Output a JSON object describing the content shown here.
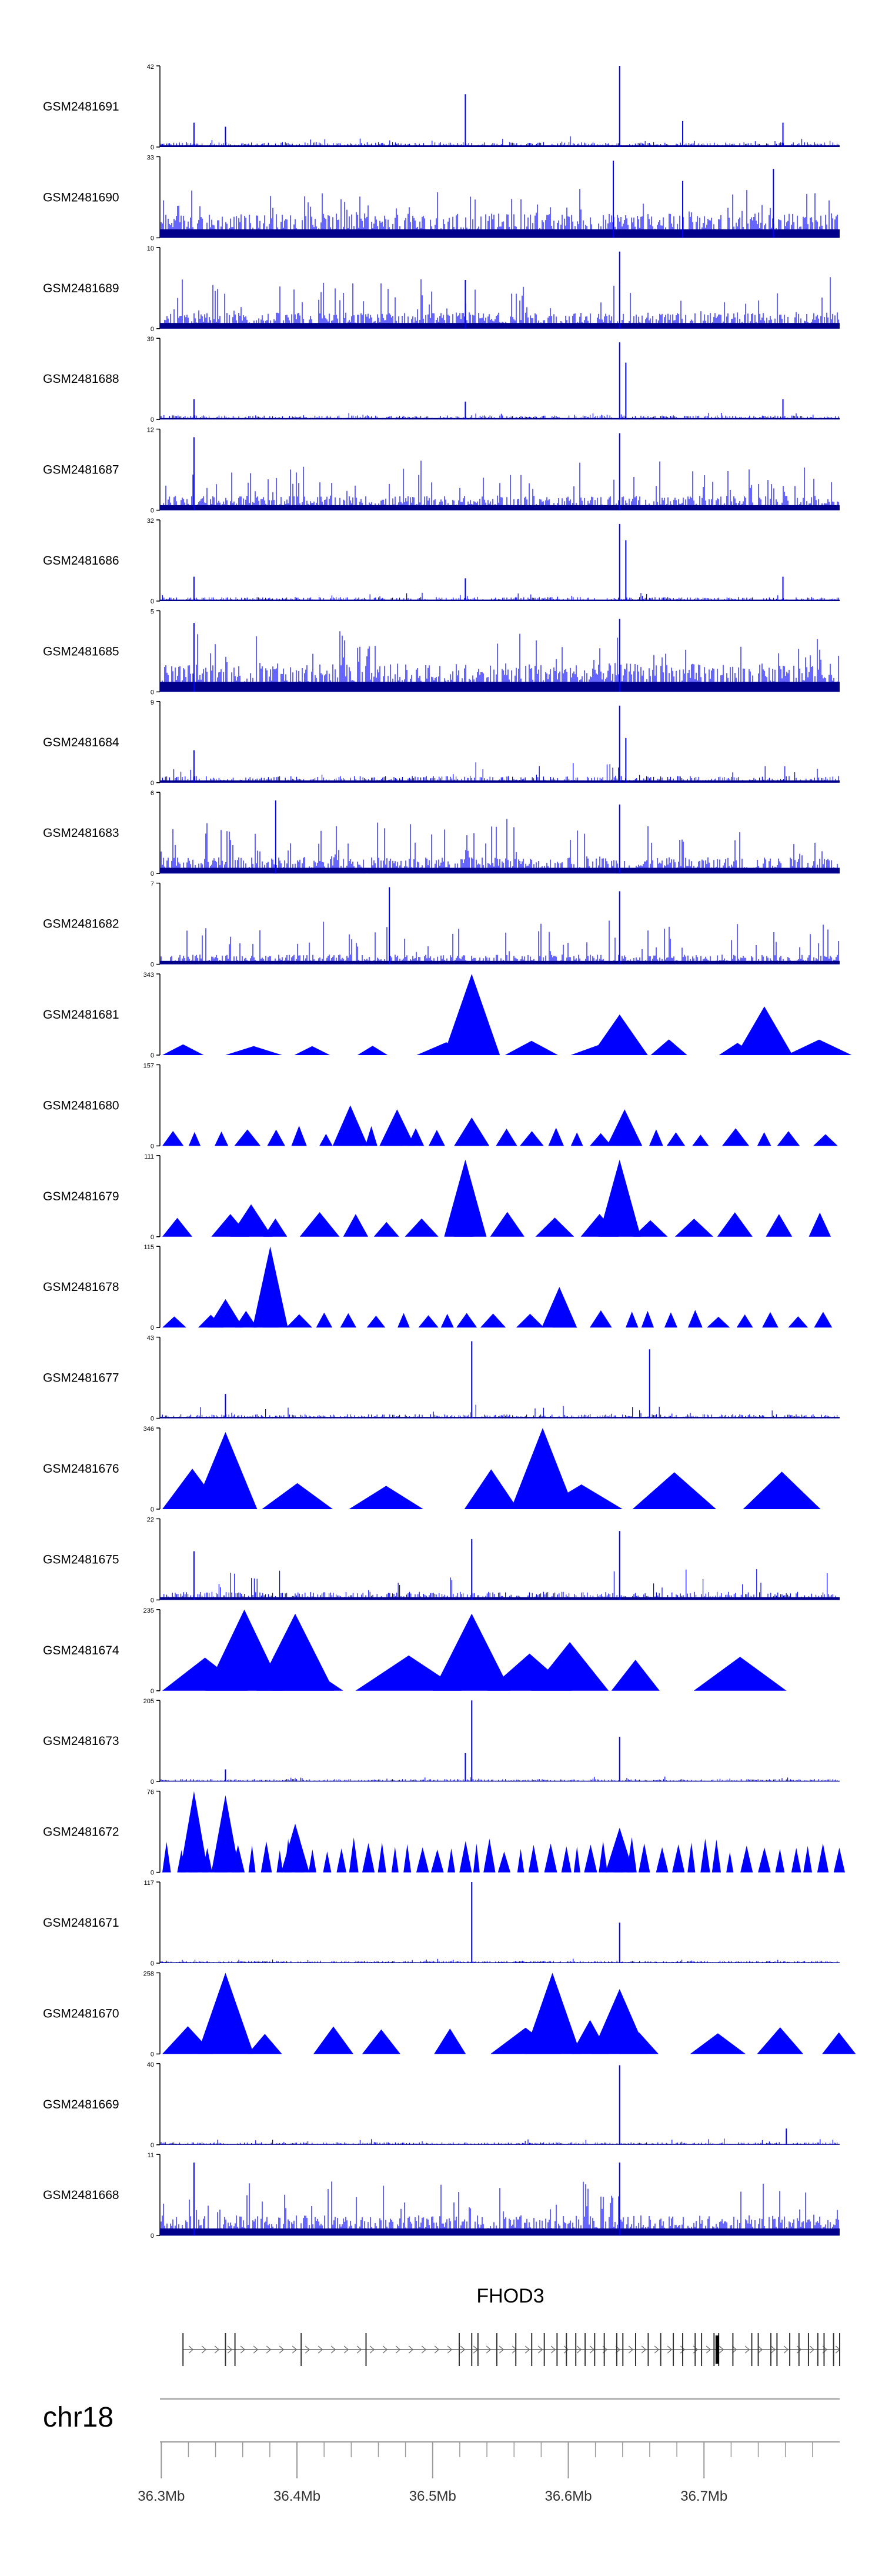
{
  "chart_data": {
    "type": "genome-browser-tracks",
    "colors": {
      "signal": "#0000ff",
      "dense": "#00008b",
      "axis": "#000000",
      "gene": "#666666",
      "scale": "#999999"
    },
    "tracks": [
      {
        "name": "GSM2481691",
        "ymax": "42",
        "ymin": "0",
        "style": "spiky",
        "baseline": 0.06,
        "noise": 0.08,
        "peaks": [
          [
            36.3241,
            0.3
          ],
          [
            36.3473,
            0.25
          ],
          [
            36.5241,
            0.65
          ],
          [
            36.6378,
            1.0
          ],
          [
            36.6843,
            0.32
          ],
          [
            36.7582,
            0.3
          ]
        ]
      },
      {
        "name": "GSM2481690",
        "ymax": "33",
        "ymin": "0",
        "style": "spiky-dense",
        "baseline": 0.3,
        "noise": 0.35,
        "peaks": [
          [
            36.6332,
            0.95
          ],
          [
            36.7512,
            0.85
          ],
          [
            36.6843,
            0.7
          ]
        ]
      },
      {
        "name": "GSM2481689",
        "ymax": "10",
        "ymin": "0",
        "style": "spiky-dense",
        "baseline": 0.2,
        "noise": 0.45,
        "peaks": [
          [
            36.6378,
            0.95
          ],
          [
            36.5241,
            0.6
          ]
        ]
      },
      {
        "name": "GSM2481688",
        "ymax": "39",
        "ymin": "0",
        "style": "spiky",
        "baseline": 0.05,
        "noise": 0.06,
        "peaks": [
          [
            36.3241,
            0.25
          ],
          [
            36.5241,
            0.22
          ],
          [
            36.6378,
            0.95
          ],
          [
            36.6424,
            0.7
          ],
          [
            36.7582,
            0.25
          ]
        ]
      },
      {
        "name": "GSM2481687",
        "ymax": "12",
        "ymin": "0",
        "style": "spiky-dense",
        "baseline": 0.18,
        "noise": 0.45,
        "peaks": [
          [
            36.3241,
            0.9
          ],
          [
            36.6378,
            0.95
          ]
        ]
      },
      {
        "name": "GSM2481686",
        "ymax": "32",
        "ymin": "0",
        "style": "spiky",
        "baseline": 0.05,
        "noise": 0.06,
        "peaks": [
          [
            36.3241,
            0.3
          ],
          [
            36.5241,
            0.28
          ],
          [
            36.6378,
            0.95
          ],
          [
            36.6424,
            0.75
          ],
          [
            36.7582,
            0.3
          ]
        ]
      },
      {
        "name": "GSM2481685",
        "ymax": "5",
        "ymin": "0",
        "style": "spiky-dense",
        "baseline": 0.35,
        "noise": 0.5,
        "peaks": [
          [
            36.3241,
            0.85
          ],
          [
            36.6378,
            0.9
          ]
        ]
      },
      {
        "name": "GSM2481684",
        "ymax": "9",
        "ymin": "0",
        "style": "spiky",
        "baseline": 0.08,
        "noise": 0.2,
        "peaks": [
          [
            36.3241,
            0.4
          ],
          [
            36.6378,
            0.95
          ],
          [
            36.6424,
            0.55
          ]
        ]
      },
      {
        "name": "GSM2481683",
        "ymax": "6",
        "ymin": "0",
        "style": "spiky-dense",
        "baseline": 0.2,
        "noise": 0.5,
        "peaks": [
          [
            36.6378,
            0.85
          ],
          [
            36.3843,
            0.9
          ]
        ]
      },
      {
        "name": "GSM2481682",
        "ymax": "7",
        "ymin": "0",
        "style": "spiky-dense",
        "baseline": 0.12,
        "noise": 0.45,
        "peaks": [
          [
            36.4681,
            0.95
          ],
          [
            36.6378,
            0.9
          ]
        ]
      },
      {
        "name": "GSM2481681",
        "ymax": "343",
        "ymin": "0",
        "style": "triangles",
        "width": 5,
        "height": 0.2,
        "peaks": [
          [
            36.5288,
            1.0
          ],
          [
            36.7445,
            0.6
          ],
          [
            36.6378,
            0.5
          ]
        ]
      },
      {
        "name": "GSM2481680",
        "ymax": "157",
        "ymin": "0",
        "style": "triangles",
        "width": 2,
        "height": 0.25,
        "peaks": [
          [
            36.4393,
            0.5
          ],
          [
            36.4738,
            0.45
          ],
          [
            36.6415,
            0.45
          ],
          [
            36.5288,
            0.35
          ]
        ]
      },
      {
        "name": "GSM2481679",
        "ymax": "111",
        "ymin": "0",
        "style": "triangles",
        "width": 3,
        "height": 0.32,
        "peaks": [
          [
            36.5241,
            0.95
          ],
          [
            36.6378,
            0.95
          ],
          [
            36.3662,
            0.4
          ]
        ]
      },
      {
        "name": "GSM2481678",
        "ymax": "115",
        "ymin": "0",
        "style": "triangles",
        "width": 2,
        "height": 0.22,
        "peaks": [
          [
            36.3803,
            1.0
          ],
          [
            36.5934,
            0.5
          ],
          [
            36.3473,
            0.35
          ]
        ]
      },
      {
        "name": "GSM2481677",
        "ymax": "43",
        "ymin": "0",
        "style": "spiky",
        "baseline": 0.05,
        "noise": 0.12,
        "peaks": [
          [
            36.5288,
            0.95
          ],
          [
            36.6599,
            0.85
          ],
          [
            36.3473,
            0.3
          ]
        ]
      },
      {
        "name": "GSM2481676",
        "ymax": "346",
        "ymin": "0",
        "style": "triangles",
        "width": 6,
        "height": 0.5,
        "peaks": [
          [
            36.5811,
            1.0
          ],
          [
            36.3473,
            0.95
          ]
        ]
      },
      {
        "name": "GSM2481675",
        "ymax": "22",
        "ymin": "0",
        "style": "spiky",
        "baseline": 0.1,
        "noise": 0.3,
        "peaks": [
          [
            36.3241,
            0.6
          ],
          [
            36.5288,
            0.75
          ],
          [
            36.6378,
            0.85
          ]
        ]
      },
      {
        "name": "GSM2481674",
        "ymax": "235",
        "ymin": "0",
        "style": "triangles",
        "width": 8,
        "height": 0.5,
        "peaks": [
          [
            36.3612,
            1.0
          ],
          [
            36.3987,
            0.95
          ],
          [
            36.5288,
            0.95
          ],
          [
            36.6011,
            0.6
          ]
        ]
      },
      {
        "name": "GSM2481673",
        "ymax": "205",
        "ymin": "0",
        "style": "spiky",
        "baseline": 0.03,
        "noise": 0.04,
        "peaks": [
          [
            36.5288,
            1.0
          ],
          [
            36.6378,
            0.55
          ],
          [
            36.5241,
            0.35
          ],
          [
            36.3473,
            0.15
          ]
        ]
      },
      {
        "name": "GSM2481672",
        "ymax": "76",
        "ymin": "0",
        "style": "triangles",
        "width": 1,
        "height": 0.45,
        "peaks": [
          [
            36.3241,
            1.0
          ],
          [
            36.3473,
            0.95
          ],
          [
            36.3987,
            0.6
          ],
          [
            36.6378,
            0.55
          ]
        ]
      },
      {
        "name": "GSM2481671",
        "ymax": "117",
        "ymin": "0",
        "style": "spiky",
        "baseline": 0.03,
        "noise": 0.04,
        "peaks": [
          [
            36.5288,
            1.0
          ],
          [
            36.6378,
            0.5
          ]
        ]
      },
      {
        "name": "GSM2481670",
        "ymax": "258",
        "ymin": "0",
        "style": "triangles",
        "width": 5,
        "height": 0.45,
        "peaks": [
          [
            36.3473,
            1.0
          ],
          [
            36.5883,
            1.0
          ],
          [
            36.6378,
            0.8
          ]
        ]
      },
      {
        "name": "GSM2481669",
        "ymax": "40",
        "ymin": "0",
        "style": "spiky",
        "baseline": 0.03,
        "noise": 0.05,
        "peaks": [
          [
            36.6378,
            0.98
          ],
          [
            36.7607,
            0.2
          ]
        ]
      },
      {
        "name": "GSM2481668",
        "ymax": "11",
        "ymin": "0",
        "style": "spiky-dense",
        "baseline": 0.25,
        "noise": 0.5,
        "peaks": [
          [
            36.3241,
            0.9
          ],
          [
            36.6378,
            0.9
          ]
        ]
      }
    ],
    "gene": {
      "name": "FHOD3",
      "strand": "+",
      "start_mb": 36.316,
      "end_mb": 36.8,
      "exons_mb": [
        36.316,
        36.3473,
        36.3543,
        36.4031,
        36.4509,
        36.5196,
        36.5288,
        36.5334,
        36.5473,
        36.5613,
        36.573,
        36.5823,
        36.5917,
        36.5986,
        36.6055,
        36.6124,
        36.6194,
        36.6265,
        36.6357,
        36.6402,
        36.6496,
        36.6589,
        36.6681,
        36.6774,
        36.6843,
        36.6935,
        36.6982,
        36.7074,
        36.7108,
        36.7213,
        36.7352,
        36.74,
        36.7493,
        36.7538,
        36.7632,
        36.77,
        36.777,
        36.7839,
        36.7885,
        36.7955,
        36.8
      ],
      "thick_exons_mb": [
        36.7085,
        36.7108
      ]
    },
    "chromosome": "chr18",
    "x_axis": {
      "range_mb": [
        36.299,
        36.8
      ],
      "tick_labels": [
        "36.3Mb",
        "36.4Mb",
        "36.5Mb",
        "36.6Mb",
        "36.7Mb"
      ],
      "major_ticks_mb": [
        36.3,
        36.4,
        36.5,
        36.6,
        36.7
      ],
      "minor_step_mb": 0.02
    }
  }
}
